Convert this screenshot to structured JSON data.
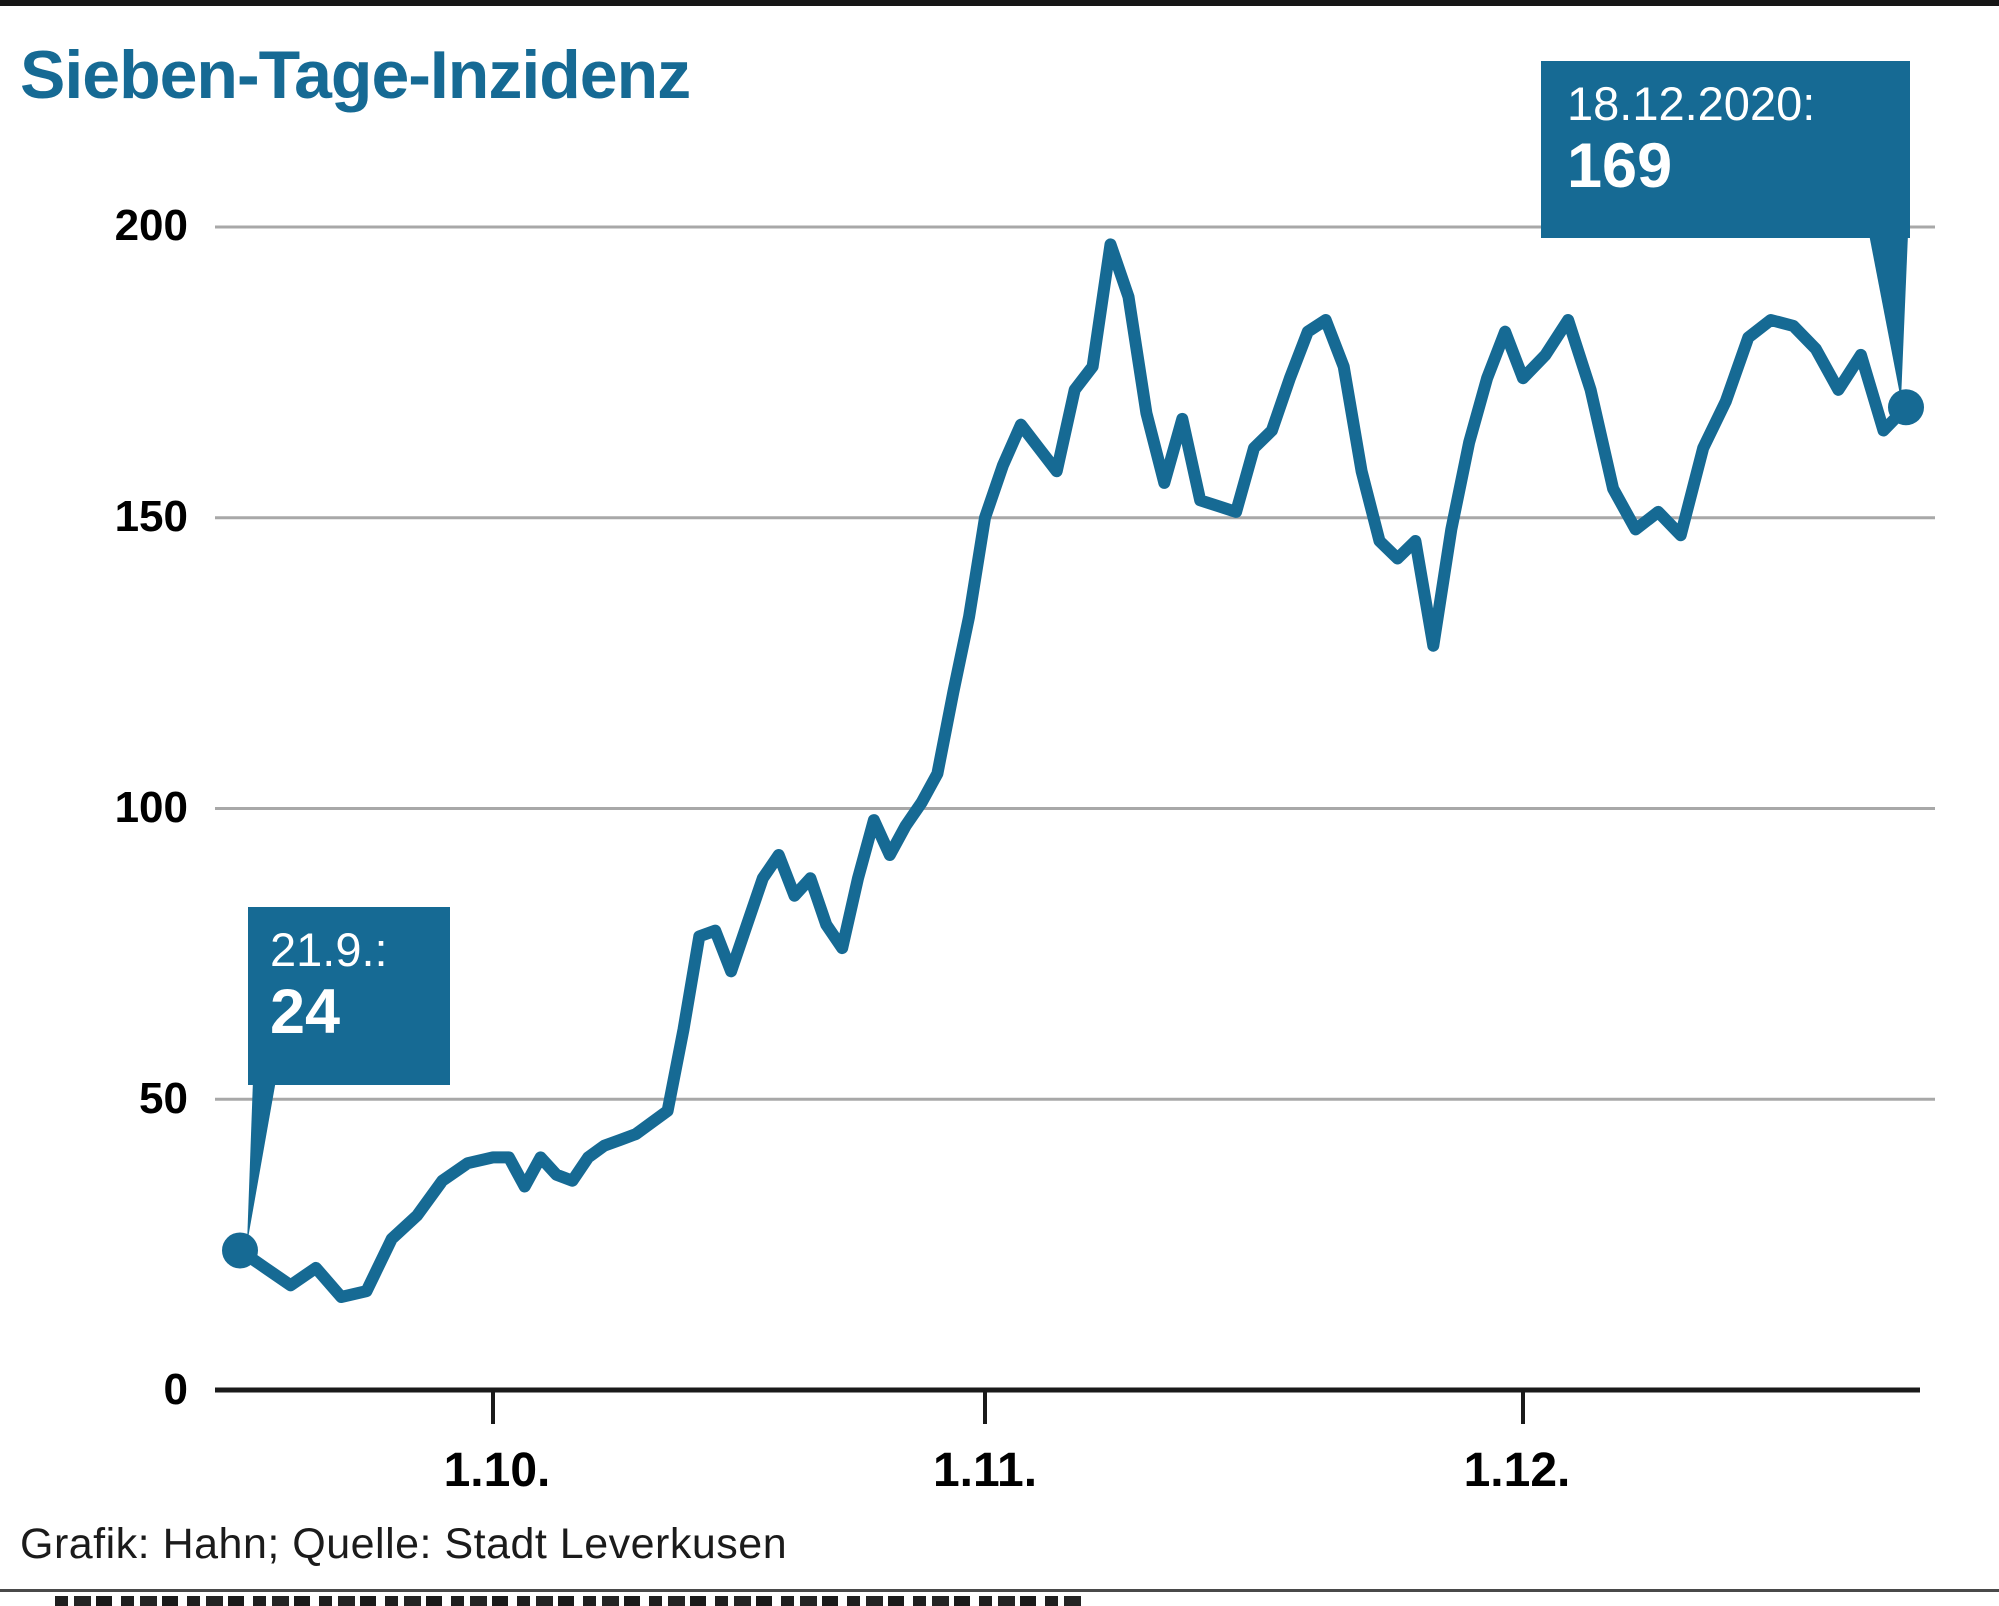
{
  "title": "Sieben-Tage-Inzidenz",
  "footer": "Grafik: Hahn; Quelle: Stadt Leverkusen",
  "colors": {
    "accent": "#166a94",
    "line": "#166a94",
    "grid": "#a8a8a8",
    "axis": "#1a1a1a",
    "text": "#000000"
  },
  "y_axis": {
    "labels": [
      "200",
      "150",
      "100",
      "50",
      "0"
    ]
  },
  "x_axis": {
    "labels": [
      "1.10.",
      "1.11.",
      "1.12."
    ]
  },
  "annotations": {
    "start": {
      "date": "21.9.:",
      "value": "24"
    },
    "end": {
      "date": "18.12.2020:",
      "value": "169"
    }
  },
  "chart_data": {
    "type": "line",
    "title": "Sieben-Tage-Inzidenz",
    "ylabel": "",
    "xlabel": "",
    "ylim": [
      0,
      200
    ],
    "y_ticks": [
      0,
      50,
      100,
      150,
      200
    ],
    "grid": true,
    "legend": "none",
    "x_tick_labels": [
      "1.10.",
      "1.11.",
      "1.12."
    ],
    "x_tick_indices": [
      10,
      41,
      71
    ],
    "x": [
      "21.9.",
      "22.9.",
      "23.9.",
      "24.9.",
      "25.9.",
      "26.9.",
      "27.9.",
      "28.9.",
      "29.9.",
      "30.9.",
      "1.10.",
      "2.10.",
      "3.10.",
      "4.10.",
      "5.10.",
      "6.10.",
      "7.10.",
      "8.10.",
      "9.10.",
      "10.10.",
      "11.10.",
      "12.10.",
      "13.10.",
      "14.10.",
      "15.10.",
      "16.10.",
      "17.10.",
      "18.10.",
      "19.10.",
      "20.10.",
      "21.10.",
      "22.10.",
      "23.10.",
      "24.10.",
      "25.10.",
      "26.10.",
      "27.10.",
      "28.10.",
      "29.10.",
      "30.10.",
      "31.10.",
      "1.11.",
      "2.11.",
      "3.11.",
      "4.11.",
      "5.11.",
      "6.11.",
      "7.11.",
      "8.11.",
      "9.11.",
      "10.11.",
      "11.11.",
      "12.11.",
      "13.11.",
      "14.11.",
      "15.11.",
      "16.11.",
      "17.11.",
      "18.11.",
      "19.11.",
      "20.11.",
      "21.11.",
      "22.11.",
      "23.11.",
      "24.11.",
      "25.11.",
      "26.11.",
      "27.11.",
      "28.11.",
      "29.11.",
      "30.11.",
      "1.12.",
      "2.12.",
      "3.12.",
      "4.12.",
      "5.12.",
      "6.12.",
      "7.12.",
      "8.12.",
      "9.12.",
      "10.12.",
      "11.12.",
      "12.12.",
      "13.12.",
      "14.12.",
      "15.12.",
      "16.12.",
      "17.12.",
      "18.12."
    ],
    "values": [
      24,
      21,
      18,
      21,
      16,
      17,
      26,
      30,
      36,
      39,
      40,
      40,
      35,
      40,
      37,
      36,
      40,
      42,
      43,
      44,
      46,
      48,
      62,
      78,
      79,
      72,
      80,
      88,
      92,
      85,
      88,
      80,
      76,
      88,
      98,
      92,
      97,
      101,
      106,
      120,
      133,
      150,
      159,
      166,
      162,
      158,
      172,
      176,
      197,
      188,
      168,
      156,
      167,
      153,
      152,
      151,
      162,
      165,
      174,
      182,
      184,
      176,
      158,
      146,
      143,
      146,
      128,
      148,
      163,
      174,
      182,
      174,
      178,
      184,
      172,
      155,
      148,
      151,
      147,
      162,
      170,
      181,
      184,
      183,
      179,
      172,
      178,
      165,
      169
    ],
    "annotations": [
      {
        "x": "21.9.",
        "value": 24,
        "label": "21.9.: 24"
      },
      {
        "x": "18.12.",
        "value": 169,
        "label": "18.12.2020: 169"
      }
    ]
  }
}
